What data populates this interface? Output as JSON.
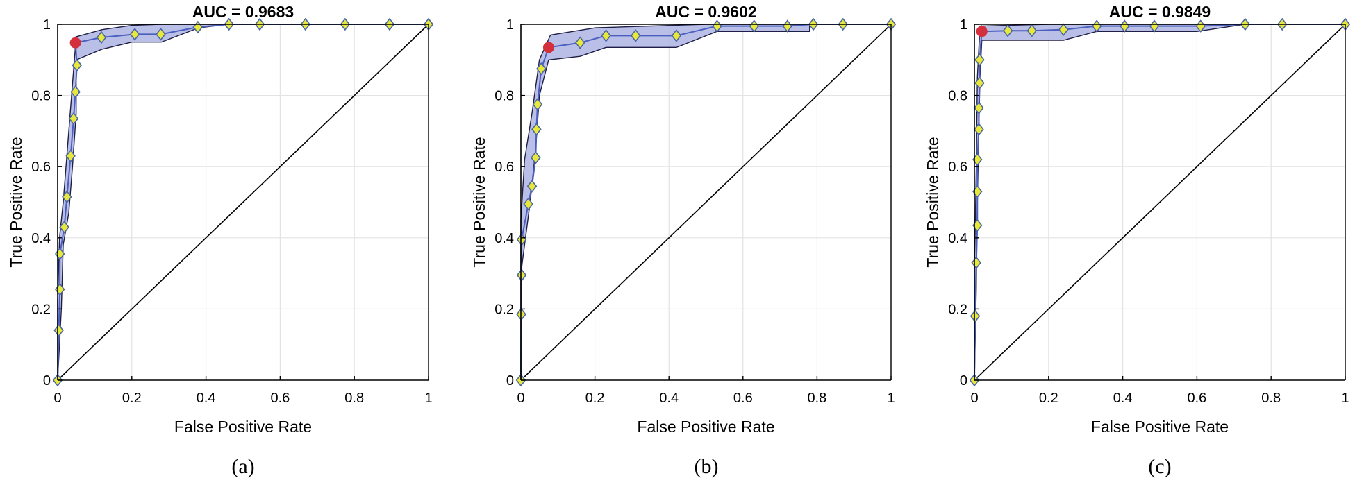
{
  "colors": {
    "band_fill": "#aeb4e4",
    "band_edge": "#1e1e46",
    "roc_line": "#4a5fbf",
    "marker_fill": "#e8e83a",
    "marker_edge": "#4a66a8",
    "operating_point": "#d32f3c",
    "grid": "#e3e3e3",
    "axis": "#000000"
  },
  "chart_data": [
    {
      "type": "line",
      "panel": "(a)",
      "title": "AUC = 0.9683",
      "xlabel": "False Positive Rate",
      "ylabel": "True Positive Rate",
      "xlim": [
        0,
        1
      ],
      "ylim": [
        0,
        1
      ],
      "xticks": [
        "0",
        "0.2",
        "0.4",
        "0.6",
        "0.8",
        "1"
      ],
      "yticks": [
        "0",
        "0.2",
        "0.4",
        "0.6",
        "0.8",
        "1"
      ],
      "grid": true,
      "diagonal": [
        [
          0,
          0
        ],
        [
          1,
          1
        ]
      ],
      "operating_point": [
        0.048,
        0.948
      ],
      "roc_points": [
        [
          0.0,
          0.0
        ],
        [
          0.003,
          0.14
        ],
        [
          0.006,
          0.255
        ],
        [
          0.006,
          0.355
        ],
        [
          0.018,
          0.43
        ],
        [
          0.025,
          0.515
        ],
        [
          0.035,
          0.63
        ],
        [
          0.043,
          0.735
        ],
        [
          0.048,
          0.81
        ],
        [
          0.052,
          0.885
        ],
        [
          0.048,
          0.948
        ],
        [
          0.118,
          0.963
        ],
        [
          0.208,
          0.972
        ],
        [
          0.278,
          0.972
        ],
        [
          0.378,
          0.992
        ],
        [
          0.462,
          1.0
        ],
        [
          0.545,
          1.0
        ],
        [
          0.668,
          1.0
        ],
        [
          0.775,
          1.0
        ],
        [
          0.895,
          1.0
        ],
        [
          1.0,
          1.0
        ]
      ],
      "band_upper": [
        [
          0.0,
          0.0
        ],
        [
          0.0,
          0.22
        ],
        [
          0.005,
          0.4
        ],
        [
          0.015,
          0.5
        ],
        [
          0.03,
          0.7
        ],
        [
          0.05,
          0.965
        ],
        [
          0.12,
          0.985
        ],
        [
          0.2,
          0.997
        ],
        [
          0.28,
          1.0
        ],
        [
          0.38,
          1.0
        ],
        [
          1.0,
          1.0
        ]
      ],
      "band_lower": [
        [
          1.0,
          1.0
        ],
        [
          0.46,
          1.0
        ],
        [
          0.38,
          0.99
        ],
        [
          0.28,
          0.95
        ],
        [
          0.2,
          0.95
        ],
        [
          0.12,
          0.93
        ],
        [
          0.05,
          0.9
        ],
        [
          0.05,
          0.75
        ],
        [
          0.04,
          0.6
        ],
        [
          0.03,
          0.47
        ],
        [
          0.015,
          0.38
        ],
        [
          0.01,
          0.2
        ],
        [
          0.0,
          0.0
        ]
      ]
    },
    {
      "type": "line",
      "panel": "(b)",
      "title": "AUC = 0.9602",
      "xlabel": "False Positive Rate",
      "ylabel": "True Positive Rate",
      "xlim": [
        0,
        1
      ],
      "ylim": [
        0,
        1
      ],
      "xticks": [
        "0",
        "0.2",
        "0.4",
        "0.6",
        "0.8",
        "1"
      ],
      "yticks": [
        "0",
        "0.2",
        "0.4",
        "0.6",
        "0.8",
        "1"
      ],
      "grid": true,
      "diagonal": [
        [
          0,
          0
        ],
        [
          1,
          1
        ]
      ],
      "operating_point": [
        0.075,
        0.935
      ],
      "roc_points": [
        [
          0.0,
          0.0
        ],
        [
          0.001,
          0.185
        ],
        [
          0.002,
          0.295
        ],
        [
          0.002,
          0.395
        ],
        [
          0.02,
          0.495
        ],
        [
          0.03,
          0.545
        ],
        [
          0.04,
          0.625
        ],
        [
          0.042,
          0.705
        ],
        [
          0.045,
          0.775
        ],
        [
          0.055,
          0.875
        ],
        [
          0.075,
          0.935
        ],
        [
          0.16,
          0.948
        ],
        [
          0.23,
          0.968
        ],
        [
          0.31,
          0.968
        ],
        [
          0.42,
          0.968
        ],
        [
          0.53,
          0.995
        ],
        [
          0.63,
          0.995
        ],
        [
          0.72,
          0.995
        ],
        [
          0.79,
          1.0
        ],
        [
          0.87,
          1.0
        ],
        [
          1.0,
          1.0
        ]
      ],
      "band_upper": [
        [
          0.0,
          0.0
        ],
        [
          0.0,
          0.45
        ],
        [
          0.01,
          0.62
        ],
        [
          0.03,
          0.75
        ],
        [
          0.05,
          0.9
        ],
        [
          0.08,
          0.97
        ],
        [
          0.2,
          0.99
        ],
        [
          0.5,
          1.0
        ],
        [
          1.0,
          1.0
        ]
      ],
      "band_lower": [
        [
          1.0,
          1.0
        ],
        [
          0.78,
          1.0
        ],
        [
          0.78,
          0.98
        ],
        [
          0.53,
          0.98
        ],
        [
          0.42,
          0.935
        ],
        [
          0.23,
          0.935
        ],
        [
          0.16,
          0.91
        ],
        [
          0.075,
          0.9
        ],
        [
          0.05,
          0.8
        ],
        [
          0.04,
          0.65
        ],
        [
          0.025,
          0.5
        ],
        [
          0.01,
          0.38
        ],
        [
          0.0,
          0.3
        ],
        [
          0.0,
          0.0
        ]
      ]
    },
    {
      "type": "line",
      "panel": "(c)",
      "title": "AUC = 0.9849",
      "xlabel": "False Positive Rate",
      "ylabel": "True Positive Rate",
      "xlim": [
        0,
        1
      ],
      "ylim": [
        0,
        1
      ],
      "xticks": [
        "0",
        "0.2",
        "0.4",
        "0.6",
        "0.8",
        "1"
      ],
      "yticks": [
        "0",
        "0.2",
        "0.4",
        "0.6",
        "0.8",
        "1"
      ],
      "grid": true,
      "diagonal": [
        [
          0,
          0
        ],
        [
          1,
          1
        ]
      ],
      "operating_point": [
        0.02,
        0.98
      ],
      "roc_points": [
        [
          0.0,
          0.0
        ],
        [
          0.002,
          0.18
        ],
        [
          0.005,
          0.33
        ],
        [
          0.008,
          0.435
        ],
        [
          0.008,
          0.53
        ],
        [
          0.008,
          0.62
        ],
        [
          0.012,
          0.705
        ],
        [
          0.012,
          0.765
        ],
        [
          0.014,
          0.835
        ],
        [
          0.014,
          0.9
        ],
        [
          0.02,
          0.98
        ],
        [
          0.09,
          0.982
        ],
        [
          0.155,
          0.982
        ],
        [
          0.24,
          0.985
        ],
        [
          0.33,
          0.995
        ],
        [
          0.405,
          0.995
        ],
        [
          0.485,
          0.995
        ],
        [
          0.61,
          0.995
        ],
        [
          0.73,
          1.0
        ],
        [
          0.83,
          1.0
        ],
        [
          1.0,
          1.0
        ]
      ],
      "band_upper": [
        [
          0.0,
          0.0
        ],
        [
          0.0,
          0.3
        ],
        [
          0.005,
          0.6
        ],
        [
          0.008,
          0.85
        ],
        [
          0.015,
          0.995
        ],
        [
          0.2,
          1.0
        ],
        [
          1.0,
          1.0
        ]
      ],
      "band_lower": [
        [
          1.0,
          1.0
        ],
        [
          0.73,
          1.0
        ],
        [
          0.6,
          0.98
        ],
        [
          0.33,
          0.98
        ],
        [
          0.24,
          0.955
        ],
        [
          0.02,
          0.955
        ],
        [
          0.015,
          0.85
        ],
        [
          0.012,
          0.7
        ],
        [
          0.008,
          0.5
        ],
        [
          0.005,
          0.25
        ],
        [
          0.0,
          0.0
        ]
      ]
    }
  ],
  "captions": [
    "(a)",
    "(b)",
    "(c)"
  ]
}
